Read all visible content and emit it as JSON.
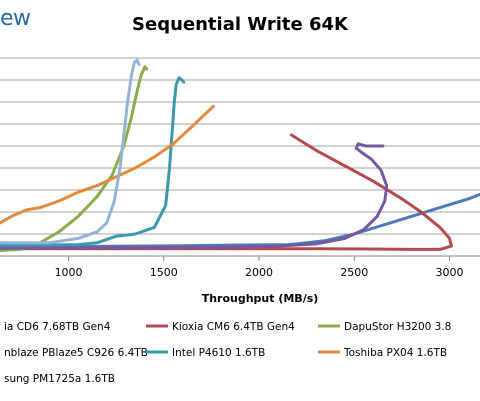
{
  "header": {
    "brand": "ew"
  },
  "chart_data": {
    "type": "line",
    "title": "Sequential Write 64K",
    "xlabel": "Throughput (MB/s)",
    "ylabel": "",
    "xlim": [
      640,
      3160
    ],
    "ylim": [
      0,
      9
    ],
    "x_ticks": [
      1000,
      1500,
      2000,
      2500,
      3000
    ],
    "y_gridlines": [
      1,
      2,
      3,
      4,
      5,
      6,
      7,
      8,
      9
    ],
    "grid": true,
    "legend_position": "bottom",
    "series": [
      {
        "name": "ia CD6 7.68TB Gen4",
        "color": "#4f7bb6",
        "x": [
          640,
          900,
          1300,
          1600,
          1900,
          2150,
          2200,
          2350,
          2500,
          2650,
          2800,
          2950,
          3100,
          3160
        ],
        "y": [
          0.4,
          0.42,
          0.45,
          0.47,
          0.5,
          0.52,
          0.55,
          0.7,
          1.0,
          1.4,
          1.8,
          2.2,
          2.6,
          2.8
        ]
      },
      {
        "name": "Kioxia CM6 6.4TB Gen4",
        "color": "#b34a4f",
        "x": [
          2170,
          2300,
          2450,
          2600,
          2750,
          2850,
          2950,
          3000,
          3010,
          2950,
          2800,
          2600,
          2300,
          1900,
          1500,
          1100,
          800,
          640
        ],
        "y": [
          5.5,
          4.8,
          4.1,
          3.4,
          2.6,
          2.0,
          1.3,
          0.8,
          0.45,
          0.3,
          0.3,
          0.32,
          0.33,
          0.33,
          0.33,
          0.33,
          0.33,
          0.33
        ]
      },
      {
        "name": "DapuStor H3200 3.8",
        "color": "#8aac4d",
        "x": [
          640,
          750,
          850,
          950,
          1050,
          1150,
          1230,
          1290,
          1330,
          1360,
          1380,
          1400,
          1410
        ],
        "y": [
          0.25,
          0.3,
          0.6,
          1.1,
          1.8,
          2.7,
          3.7,
          5.0,
          6.3,
          7.5,
          8.2,
          8.6,
          8.5
        ]
      },
      {
        "name": "nblaze PBlaze5 C926 6.4TB",
        "color": "#7459a2",
        "x": [
          640,
          1000,
          1400,
          1800,
          2100,
          2300,
          2450,
          2550,
          2620,
          2660,
          2670,
          2640,
          2590,
          2540,
          2510,
          2520,
          2560,
          2600,
          2650
        ],
        "y": [
          0.35,
          0.37,
          0.38,
          0.4,
          0.45,
          0.55,
          0.8,
          1.2,
          1.8,
          2.5,
          3.2,
          3.9,
          4.4,
          4.7,
          4.9,
          5.1,
          5.0,
          5.0,
          5.0
        ]
      },
      {
        "name": "Intel P4610 1.6TB",
        "color": "#3b9aaa",
        "x": [
          640,
          900,
          1050,
          1150,
          1250,
          1350,
          1450,
          1510,
          1530,
          1545,
          1555,
          1565,
          1580,
          1595,
          1605
        ],
        "y": [
          0.5,
          0.5,
          0.52,
          0.6,
          0.9,
          1.0,
          1.3,
          2.3,
          4.0,
          5.8,
          7.0,
          7.8,
          8.1,
          8.0,
          7.9
        ]
      },
      {
        "name": "Toshiba PX04 1.6TB",
        "color": "#e28a3c",
        "x": [
          640,
          700,
          780,
          850,
          950,
          1050,
          1150,
          1250,
          1350,
          1450,
          1550,
          1650,
          1760
        ],
        "y": [
          1.5,
          1.8,
          2.1,
          2.2,
          2.5,
          2.9,
          3.2,
          3.6,
          4.0,
          4.5,
          5.1,
          5.9,
          6.8
        ]
      },
      {
        "name": "sung PM1725a 1.6TB",
        "color": "#95b3d7",
        "x": [
          640,
          900,
          1050,
          1150,
          1200,
          1240,
          1270,
          1290,
          1310,
          1330,
          1345,
          1360,
          1370
        ],
        "y": [
          0.6,
          0.6,
          0.8,
          1.1,
          1.5,
          2.5,
          4.0,
          5.5,
          7.0,
          8.2,
          8.8,
          8.9,
          8.7
        ]
      }
    ]
  }
}
